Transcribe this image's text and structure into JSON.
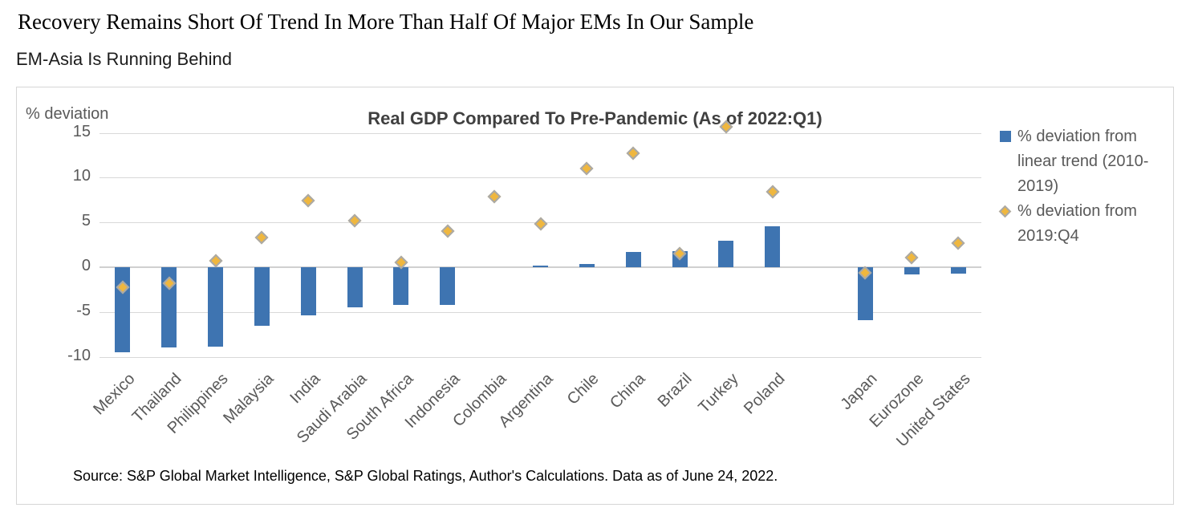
{
  "page": {
    "title": "Recovery Remains Short Of Trend In More Than Half Of Major EMs In Our Sample",
    "subtitle": "EM-Asia Is Running Behind"
  },
  "chart": {
    "source": "Source: S&P Global Market Intelligence, S&P Global Ratings, Author's Calculations. Data as of June 24, 2022.",
    "legend": [
      {
        "marker": "square-icon",
        "color": "#3E74B1",
        "label": "% deviation from linear trend (2010-2019)"
      },
      {
        "marker": "diamond-icon",
        "color": "#EFB73F",
        "label": "% deviation from 2019:Q4"
      }
    ]
  },
  "chart_data": {
    "type": "bar",
    "title": "Real GDP Compared To Pre-Pandemic (As of 2022:Q1)",
    "xlabel": "",
    "ylabel": "% deviation",
    "ylim": [
      -10,
      15
    ],
    "yticks": [
      15,
      10,
      5,
      0,
      -5,
      -10
    ],
    "grid": true,
    "legend_position": "right",
    "categories": [
      "Mexico",
      "Thailand",
      "Philippines",
      "Malaysia",
      "India",
      "Saudi Arabia",
      "South Africa",
      "Indonesia",
      "Colombia",
      "Argentina",
      "Chile",
      "China",
      "Brazil",
      "Turkey",
      "Poland",
      "Japan",
      "Eurozone",
      "United States"
    ],
    "group_gap_after": "Poland",
    "series": [
      {
        "name": "% deviation from linear trend (2010-2019)",
        "type": "bar",
        "color": "#3E74B1",
        "values": [
          -9.5,
          -9.0,
          -8.9,
          -6.5,
          -5.4,
          -4.5,
          -4.2,
          -4.2,
          0.0,
          0.2,
          0.4,
          1.7,
          1.8,
          3.0,
          4.6,
          -5.9,
          -0.8,
          -0.7
        ]
      },
      {
        "name": "% deviation from 2019:Q4",
        "type": "scatter",
        "marker": "diamond",
        "color": "#EFB73F",
        "values": [
          -2.2,
          -1.8,
          0.7,
          3.3,
          7.4,
          5.2,
          0.5,
          4.0,
          7.9,
          4.8,
          11.0,
          12.7,
          1.5,
          15.7,
          8.4,
          -0.6,
          1.1,
          2.7
        ]
      }
    ]
  }
}
